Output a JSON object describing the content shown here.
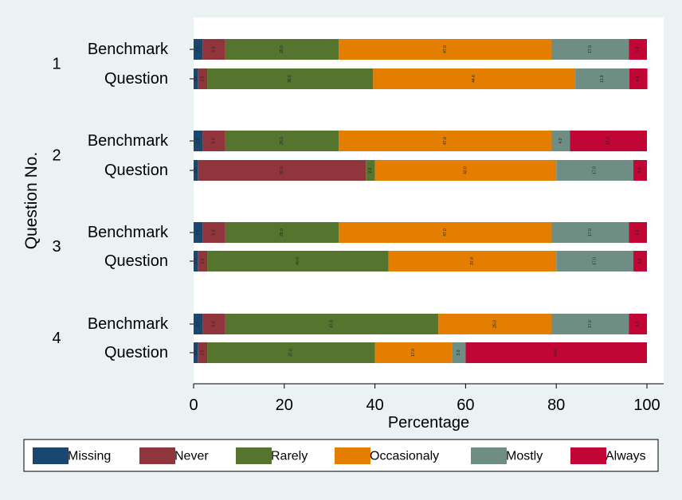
{
  "chart_data": {
    "type": "bar",
    "orientation": "horizontal",
    "stacked": true,
    "ylabel": "Question No.",
    "xlabel": "Percentage",
    "xlim": [
      0,
      100
    ],
    "xticks": [
      "0",
      "20",
      "40",
      "60",
      "80",
      "100"
    ],
    "groups": [
      "1",
      "2",
      "3",
      "4"
    ],
    "rows": [
      {
        "group": "1",
        "label": "Benchmark",
        "values": [
          2.0,
          5.0,
          25.0,
          47.0,
          17.0,
          4.0
        ],
        "value_labels": [
          "2.0",
          "5.0",
          "25.0",
          "47.0",
          "17.0",
          "4.0"
        ]
      },
      {
        "group": "1",
        "label": "Question",
        "values": [
          1.0,
          2.0,
          36.6,
          44.6,
          11.9,
          4.0
        ],
        "value_labels": [
          "1.0",
          "2.0",
          "36.6",
          "44.6",
          "11.9",
          "4.0"
        ]
      },
      {
        "group": "2",
        "label": "Benchmark",
        "values": [
          2.0,
          5.0,
          25.0,
          47.0,
          4.0,
          17.0
        ],
        "value_labels": [
          "2.0",
          "5.0",
          "25.0",
          "47.0",
          "4.0",
          "17.0"
        ]
      },
      {
        "group": "2",
        "label": "Question",
        "values": [
          1.0,
          37.0,
          2.0,
          40.0,
          17.0,
          3.0
        ],
        "value_labels": [
          "1.0",
          "37.0",
          "2.0",
          "40.0",
          "17.0",
          "3.0"
        ]
      },
      {
        "group": "3",
        "label": "Benchmark",
        "values": [
          2.0,
          5.0,
          25.0,
          47.0,
          17.0,
          4.0
        ],
        "value_labels": [
          "2.0",
          "5.0",
          "25.0",
          "47.0",
          "17.0",
          "4.0"
        ]
      },
      {
        "group": "3",
        "label": "Question",
        "values": [
          1.0,
          2.0,
          40.0,
          37.0,
          17.0,
          3.0
        ],
        "value_labels": [
          "1.0",
          "2.0",
          "40.0",
          "37.0",
          "17.0",
          "3.0"
        ]
      },
      {
        "group": "4",
        "label": "Benchmark",
        "values": [
          2.0,
          5.0,
          47.0,
          25.0,
          17.0,
          4.0
        ],
        "value_labels": [
          "2.0",
          "5.0",
          "47.0",
          "25.0",
          "17.0",
          "4.0"
        ]
      },
      {
        "group": "4",
        "label": "Question",
        "values": [
          1.0,
          2.0,
          37.0,
          17.0,
          3.0,
          40.0
        ],
        "value_labels": [
          "1.0",
          "2.0",
          "37.0",
          "17.0",
          "3.0",
          "40.0"
        ]
      }
    ],
    "series": [
      {
        "name": "Missing",
        "color": "#1a476f"
      },
      {
        "name": "Never",
        "color": "#90353b"
      },
      {
        "name": "Rarely",
        "color": "#55752f"
      },
      {
        "name": "Occasionaly",
        "color": "#e37e00"
      },
      {
        "name": "Mostly",
        "color": "#6e8e84"
      },
      {
        "name": "Always",
        "color": "#c10534"
      }
    ],
    "legend_position": "bottom",
    "grid": false,
    "background_color": "#eaf2f3",
    "plot_background_color": "#ffffff"
  }
}
